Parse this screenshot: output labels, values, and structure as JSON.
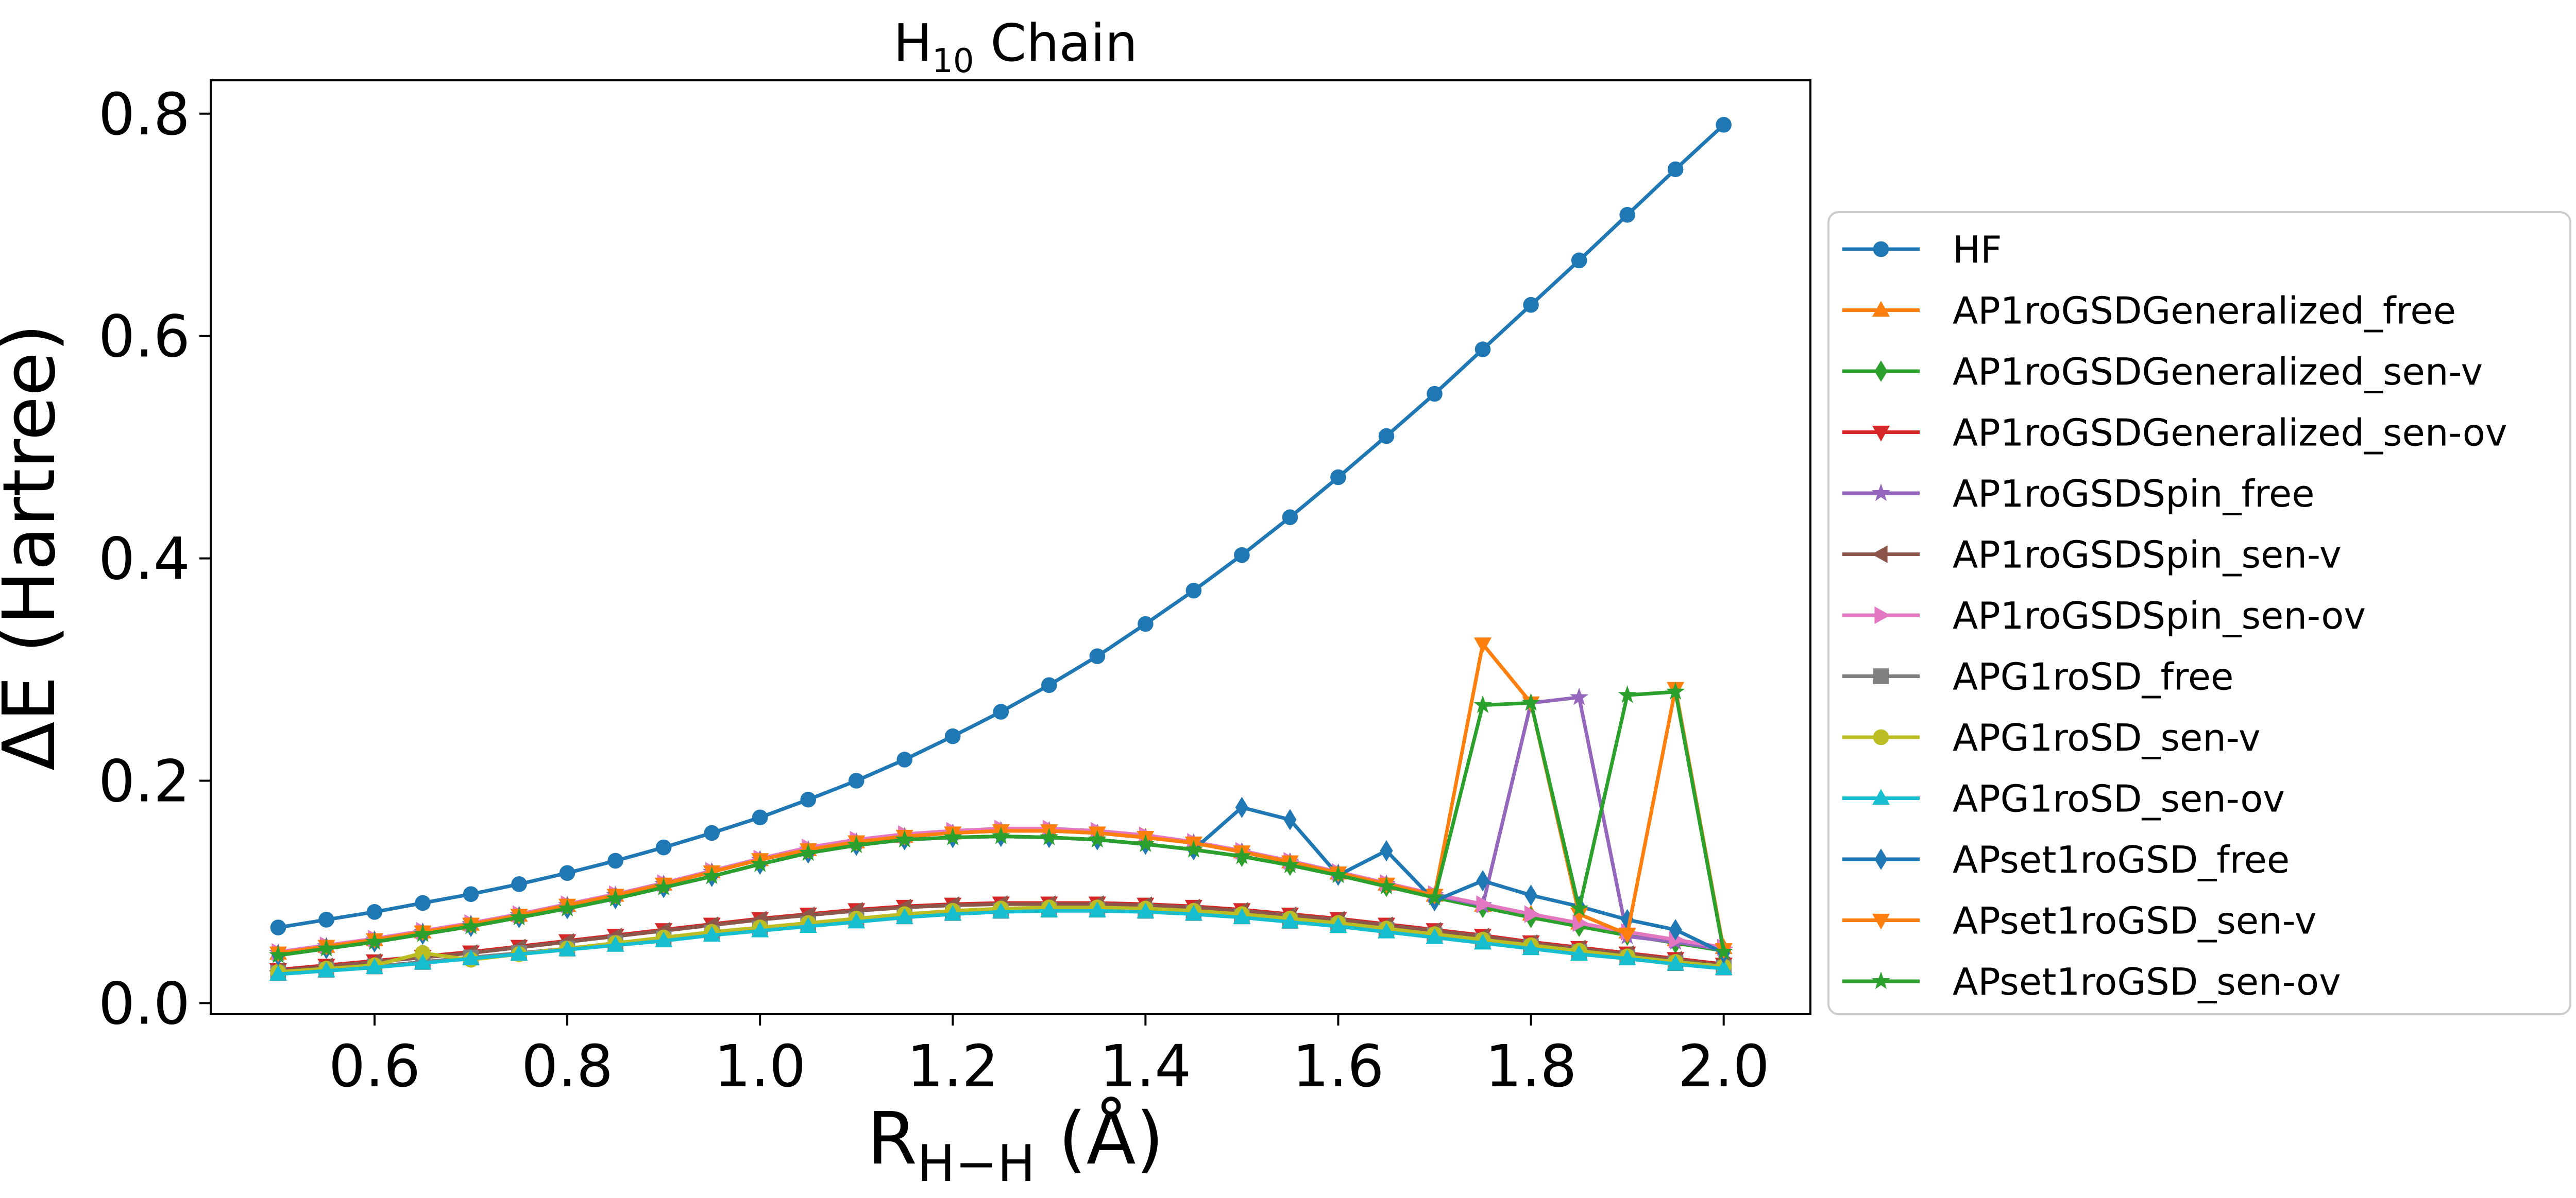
{
  "chart_data": {
    "type": "line",
    "title": "H10 Chain",
    "title_parts": {
      "base": "H",
      "sub": "10",
      "rest": " Chain"
    },
    "xlabel": "RH−H (Å)",
    "xlabel_parts": {
      "base": "R",
      "sub": "H−H",
      "rest": " (Å)"
    },
    "ylabel": "ΔE (Hartree)",
    "xlim": [
      0.43,
      2.09
    ],
    "ylim": [
      -0.01,
      0.83
    ],
    "xticks": [
      0.6,
      0.8,
      1.0,
      1.2,
      1.4,
      1.6,
      1.8,
      2.0
    ],
    "xtick_labels": [
      "0.6",
      "0.8",
      "1.0",
      "1.2",
      "1.4",
      "1.6",
      "1.8",
      "2.0"
    ],
    "yticks": [
      0.0,
      0.2,
      0.4,
      0.6,
      0.8
    ],
    "ytick_labels": [
      "0.0",
      "0.2",
      "0.4",
      "0.6",
      "0.8"
    ],
    "grid": false,
    "legend_position": "outside-right",
    "x": [
      0.5,
      0.55,
      0.6,
      0.65,
      0.7,
      0.75,
      0.8,
      0.85,
      0.9,
      0.95,
      1.0,
      1.05,
      1.1,
      1.15,
      1.2,
      1.25,
      1.3,
      1.35,
      1.4,
      1.45,
      1.5,
      1.55,
      1.6,
      1.65,
      1.7,
      1.75,
      1.8,
      1.85,
      1.9,
      1.95,
      2.0
    ],
    "series": [
      {
        "name": "HF",
        "color": "#1f77b4",
        "marker": "circle",
        "values": [
          0.068,
          0.075,
          0.082,
          0.09,
          0.098,
          0.107,
          0.117,
          0.128,
          0.14,
          0.153,
          0.167,
          0.183,
          0.2,
          0.219,
          0.24,
          0.262,
          0.286,
          0.312,
          0.341,
          0.371,
          0.403,
          0.437,
          0.473,
          0.51,
          0.548,
          0.588,
          0.628,
          0.668,
          0.709,
          0.75,
          0.79
        ]
      },
      {
        "name": "AP1roGSDGeneralized_free",
        "color": "#ff7f0e",
        "marker": "triangle-up",
        "values": [
          0.045,
          0.051,
          0.057,
          0.064,
          0.071,
          0.079,
          0.088,
          0.097,
          0.107,
          0.118,
          0.129,
          0.138,
          0.145,
          0.15,
          0.153,
          0.155,
          0.155,
          0.153,
          0.149,
          0.144,
          0.136,
          0.127,
          0.117,
          0.107,
          0.097,
          0.088,
          0.08,
          0.072,
          0.064,
          0.057,
          0.05
        ]
      },
      {
        "name": "AP1roGSDGeneralized_sen-v",
        "color": "#2ca02c",
        "marker": "diamond",
        "values": [
          0.043,
          0.049,
          0.055,
          0.062,
          0.069,
          0.077,
          0.085,
          0.094,
          0.104,
          0.114,
          0.125,
          0.135,
          0.142,
          0.147,
          0.149,
          0.15,
          0.149,
          0.147,
          0.143,
          0.138,
          0.132,
          0.124,
          0.115,
          0.105,
          0.095,
          0.086,
          0.077,
          0.069,
          0.061,
          0.054,
          0.047
        ]
      },
      {
        "name": "AP1roGSDGeneralized_sen-ov",
        "color": "#d62728",
        "marker": "triangle-down",
        "values": [
          0.03,
          0.034,
          0.038,
          0.042,
          0.046,
          0.051,
          0.056,
          0.061,
          0.066,
          0.071,
          0.076,
          0.08,
          0.084,
          0.087,
          0.089,
          0.09,
          0.09,
          0.09,
          0.089,
          0.087,
          0.084,
          0.08,
          0.076,
          0.071,
          0.066,
          0.061,
          0.055,
          0.05,
          0.045,
          0.04,
          0.035
        ]
      },
      {
        "name": "AP1roGSDSpin_free",
        "color": "#9467bd",
        "marker": "star",
        "values": [
          0.045,
          0.051,
          0.057,
          0.064,
          0.071,
          0.079,
          0.088,
          0.097,
          0.107,
          0.118,
          0.129,
          0.138,
          0.145,
          0.15,
          0.153,
          0.155,
          0.155,
          0.153,
          0.149,
          0.144,
          0.136,
          0.127,
          0.117,
          0.107,
          0.097,
          0.088,
          0.27,
          0.275,
          0.06,
          0.055,
          0.048
        ]
      },
      {
        "name": "AP1roGSDSpin_sen-v",
        "color": "#8c564b",
        "marker": "triangle-left",
        "values": [
          0.029,
          0.033,
          0.037,
          0.041,
          0.045,
          0.05,
          0.055,
          0.06,
          0.065,
          0.07,
          0.075,
          0.079,
          0.083,
          0.086,
          0.088,
          0.089,
          0.089,
          0.089,
          0.088,
          0.086,
          0.083,
          0.079,
          0.075,
          0.07,
          0.065,
          0.06,
          0.054,
          0.049,
          0.044,
          0.039,
          0.034
        ]
      },
      {
        "name": "AP1roGSDSpin_sen-ov",
        "color": "#e377c2",
        "marker": "triangle-right",
        "values": [
          0.046,
          0.052,
          0.058,
          0.065,
          0.072,
          0.08,
          0.089,
          0.098,
          0.108,
          0.119,
          0.13,
          0.14,
          0.147,
          0.152,
          0.155,
          0.157,
          0.157,
          0.155,
          0.151,
          0.145,
          0.137,
          0.128,
          0.118,
          0.108,
          0.098,
          0.089,
          0.08,
          0.072,
          0.064,
          0.057,
          0.05
        ]
      },
      {
        "name": "APG1roSD_free",
        "color": "#7f7f7f",
        "marker": "square",
        "values": [
          0.027,
          0.03,
          0.033,
          0.037,
          0.041,
          0.045,
          0.049,
          0.054,
          0.058,
          0.063,
          0.067,
          0.071,
          0.075,
          0.078,
          0.081,
          0.083,
          0.084,
          0.084,
          0.083,
          0.081,
          0.078,
          0.074,
          0.07,
          0.066,
          0.061,
          0.056,
          0.051,
          0.046,
          0.041,
          0.036,
          0.032
        ]
      },
      {
        "name": "APG1roSD_sen-v",
        "color": "#bcbd22",
        "marker": "circle",
        "values": [
          0.028,
          0.031,
          0.034,
          0.045,
          0.039,
          0.044,
          0.049,
          0.054,
          0.059,
          0.064,
          0.068,
          0.072,
          0.076,
          0.08,
          0.083,
          0.085,
          0.086,
          0.086,
          0.085,
          0.083,
          0.08,
          0.076,
          0.072,
          0.067,
          0.062,
          0.057,
          0.052,
          0.047,
          0.042,
          0.037,
          0.033
        ]
      },
      {
        "name": "APG1roSD_sen-ov",
        "color": "#17becf",
        "marker": "triangle-up",
        "values": [
          0.026,
          0.029,
          0.032,
          0.036,
          0.04,
          0.044,
          0.048,
          0.052,
          0.056,
          0.061,
          0.065,
          0.069,
          0.073,
          0.077,
          0.08,
          0.082,
          0.083,
          0.083,
          0.082,
          0.08,
          0.077,
          0.073,
          0.069,
          0.064,
          0.059,
          0.054,
          0.049,
          0.044,
          0.04,
          0.035,
          0.031
        ]
      },
      {
        "name": "APset1roGSD_free",
        "color": "#1f77b4",
        "marker": "diamond",
        "values": [
          0.043,
          0.049,
          0.055,
          0.062,
          0.069,
          0.077,
          0.085,
          0.094,
          0.104,
          0.114,
          0.125,
          0.135,
          0.142,
          0.147,
          0.149,
          0.15,
          0.149,
          0.147,
          0.143,
          0.138,
          0.176,
          0.165,
          0.115,
          0.137,
          0.092,
          0.11,
          0.097,
          0.087,
          0.075,
          0.066,
          0.045
        ]
      },
      {
        "name": "APset1roGSD_sen-v",
        "color": "#ff7f0e",
        "marker": "triangle-down",
        "values": [
          0.045,
          0.051,
          0.057,
          0.064,
          0.071,
          0.079,
          0.088,
          0.097,
          0.107,
          0.118,
          0.129,
          0.138,
          0.145,
          0.15,
          0.153,
          0.155,
          0.155,
          0.153,
          0.149,
          0.144,
          0.136,
          0.127,
          0.117,
          0.107,
          0.097,
          0.323,
          0.27,
          0.08,
          0.062,
          0.283,
          0.048
        ]
      },
      {
        "name": "APset1roGSD_sen-ov",
        "color": "#2ca02c",
        "marker": "star",
        "values": [
          0.043,
          0.049,
          0.055,
          0.062,
          0.069,
          0.077,
          0.085,
          0.094,
          0.104,
          0.114,
          0.125,
          0.135,
          0.142,
          0.147,
          0.149,
          0.15,
          0.149,
          0.147,
          0.143,
          0.138,
          0.132,
          0.124,
          0.115,
          0.105,
          0.095,
          0.268,
          0.27,
          0.085,
          0.277,
          0.28,
          0.046
        ]
      }
    ]
  }
}
